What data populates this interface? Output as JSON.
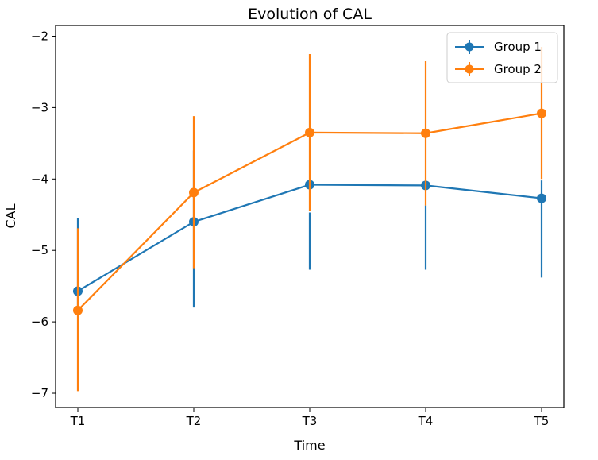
{
  "chart_data": {
    "type": "line",
    "title": "Evolution of CAL",
    "xlabel": "Time",
    "ylabel": "CAL",
    "categories": [
      "T1",
      "T2",
      "T3",
      "T4",
      "T5"
    ],
    "ylim": [
      -7.2,
      -1.85
    ],
    "yticks": [
      -7,
      -6,
      -5,
      -4,
      -3,
      -2
    ],
    "ytick_labels": [
      "−7",
      "−6",
      "−5",
      "−4",
      "−3",
      "−2"
    ],
    "grid": false,
    "legend_position": "top-right",
    "series": [
      {
        "name": "Group 1",
        "color": "#1f77b4",
        "values": [
          -5.57,
          -4.6,
          -4.08,
          -4.09,
          -4.27
        ],
        "error_low": [
          -5.8,
          -5.8,
          -5.27,
          -5.27,
          -5.38
        ],
        "error_high": [
          -4.55,
          -3.6,
          -4.47,
          -4.37,
          -4.02
        ]
      },
      {
        "name": "Group 2",
        "color": "#ff7f0e",
        "values": [
          -5.84,
          -4.19,
          -3.35,
          -3.36,
          -3.08
        ],
        "error_low": [
          -6.97,
          -5.25,
          -4.45,
          -4.37,
          -4.0
        ],
        "error_high": [
          -4.69,
          -3.12,
          -2.25,
          -2.35,
          -2.15
        ]
      }
    ]
  }
}
